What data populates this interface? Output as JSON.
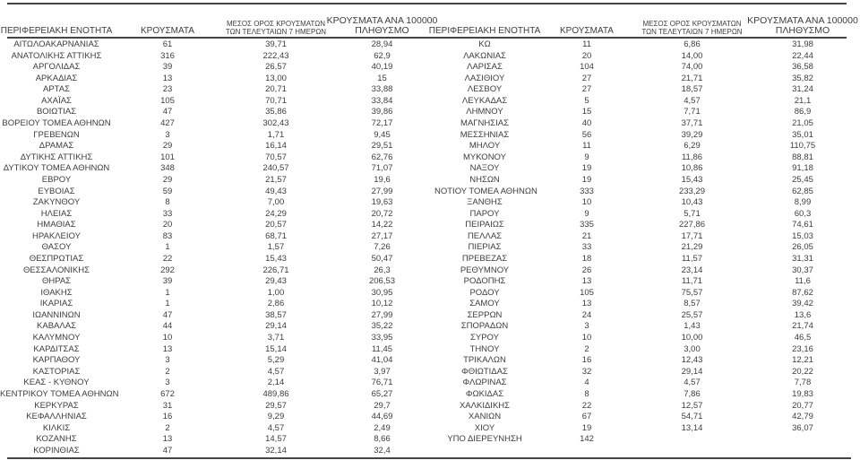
{
  "table": {
    "header": {
      "col1": "ΠΕΡΙΦΕΡΕΙΑΚΗ ΕΝΟΤΗΤΑ",
      "col2": "ΚΡΟΥΣΜΑΤΑ",
      "col3_line1": "ΜΕΣΟΣ ΟΡΟΣ ΚΡΟΥΣΜΑΤΩΝ",
      "col3_line2": "ΤΩΝ ΤΕΛΕΥΤΑΙΩΝ 7 ΗΜΕΡΩΝ",
      "col4_line1": "ΚΡΟΥΣΜΑΤΑ ΑΝΑ 100000",
      "col4_line2": "ΠΛΗΘΥΣΜΟ"
    },
    "text_color": "#3d3d3d",
    "rule_color": "#454545",
    "background_color": "#ffffff",
    "decimal_separator": ","
  },
  "chart_data": {
    "type": "table",
    "columns": [
      "ΠΕΡΙΦΕΡΕΙΑΚΗ ΕΝΟΤΗΤΑ",
      "ΚΡΟΥΣΜΑΤΑ",
      "ΜΕΣΟΣ ΟΡΟΣ ΚΡΟΥΣΜΑΤΩΝ ΤΩΝ ΤΕΛΕΥΤΑΙΩΝ 7 ΗΜΕΡΩΝ",
      "ΚΡΟΥΣΜΑΤΑ ΑΝΑ 100000 ΠΛΗΘΥΣΜΟ"
    ],
    "left_rows": [
      [
        "ΑΙΤΩΛΟΑΚΑΡΝΑΝΙΑΣ",
        "61",
        "39,71",
        "28,94"
      ],
      [
        "ΑΝΑΤΟΛΙΚΗΣ ΑΤΤΙΚΗΣ",
        "316",
        "222,43",
        "62,9"
      ],
      [
        "ΑΡΓΟΛΙΔΑΣ",
        "39",
        "26,57",
        "40,19"
      ],
      [
        "ΑΡΚΑΔΙΑΣ",
        "13",
        "13,00",
        "15"
      ],
      [
        "ΑΡΤΑΣ",
        "23",
        "20,71",
        "33,88"
      ],
      [
        "ΑΧΑΪΑΣ",
        "105",
        "70,71",
        "33,84"
      ],
      [
        "ΒΟΙΩΤΙΑΣ",
        "47",
        "35,86",
        "39,86"
      ],
      [
        "ΒΟΡΕΙΟΥ ΤΟΜΕΑ ΑΘΗΝΩΝ",
        "427",
        "302,43",
        "72,17"
      ],
      [
        "ΓΡΕΒΕΝΩΝ",
        "3",
        "1,71",
        "9,45"
      ],
      [
        "ΔΡΑΜΑΣ",
        "29",
        "16,14",
        "29,51"
      ],
      [
        "ΔΥΤΙΚΗΣ ΑΤΤΙΚΗΣ",
        "101",
        "70,57",
        "62,76"
      ],
      [
        "ΔΥΤΙΚΟΥ ΤΟΜΕΑ ΑΘΗΝΩΝ",
        "348",
        "240,57",
        "71,07"
      ],
      [
        "ΕΒΡΟΥ",
        "29",
        "21,57",
        "19,6"
      ],
      [
        "ΕΥΒΟΙΑΣ",
        "59",
        "49,43",
        "27,99"
      ],
      [
        "ΖΑΚΥΝΘΟΥ",
        "8",
        "7,00",
        "19,63"
      ],
      [
        "ΗΛΕΙΑΣ",
        "33",
        "24,29",
        "20,72"
      ],
      [
        "ΗΜΑΘΙΑΣ",
        "20",
        "20,57",
        "14,22"
      ],
      [
        "ΗΡΑΚΛΕΙΟΥ",
        "83",
        "68,71",
        "27,17"
      ],
      [
        "ΘΑΣΟΥ",
        "1",
        "1,57",
        "7,26"
      ],
      [
        "ΘΕΣΠΡΩΤΙΑΣ",
        "22",
        "15,43",
        "50,47"
      ],
      [
        "ΘΕΣΣΑΛΟΝΙΚΗΣ",
        "292",
        "226,71",
        "26,3"
      ],
      [
        "ΘΗΡΑΣ",
        "39",
        "29,43",
        "206,53"
      ],
      [
        "ΙΘΑΚΗΣ",
        "1",
        "1,00",
        "30,95"
      ],
      [
        "ΙΚΑΡΙΑΣ",
        "1",
        "2,86",
        "10,12"
      ],
      [
        "ΙΩΑΝΝΙΝΩΝ",
        "47",
        "38,57",
        "27,99"
      ],
      [
        "ΚΑΒΑΛΑΣ",
        "44",
        "29,14",
        "35,22"
      ],
      [
        "ΚΑΛΥΜΝΟΥ",
        "10",
        "3,71",
        "33,95"
      ],
      [
        "ΚΑΡΔΙΤΣΑΣ",
        "13",
        "15,14",
        "11,45"
      ],
      [
        "ΚΑΡΠΑΘΟΥ",
        "3",
        "5,29",
        "41,04"
      ],
      [
        "ΚΑΣΤΟΡΙΑΣ",
        "2",
        "4,57",
        "3,97"
      ],
      [
        "ΚΕΑΣ - ΚΥΘΝΟΥ",
        "3",
        "2,14",
        "76,71"
      ],
      [
        "ΚΕΝΤΡΙΚΟΥ ΤΟΜΕΑ ΑΘΗΝΩΝ",
        "672",
        "489,86",
        "65,27"
      ],
      [
        "ΚΕΡΚΥΡΑΣ",
        "31",
        "29,57",
        "29,7"
      ],
      [
        "ΚΕΦΑΛΛΗΝΙΑΣ",
        "16",
        "9,29",
        "44,69"
      ],
      [
        "ΚΙΛΚΙΣ",
        "2",
        "4,57",
        "2,49"
      ],
      [
        "ΚΟΖΑΝΗΣ",
        "13",
        "14,57",
        "8,66"
      ],
      [
        "ΚΟΡΙΝΘΙΑΣ",
        "47",
        "32,14",
        "32,4"
      ]
    ],
    "right_rows": [
      [
        "ΚΩ",
        "11",
        "6,86",
        "31,98"
      ],
      [
        "ΛΑΚΩΝΙΑΣ",
        "20",
        "14,00",
        "22,44"
      ],
      [
        "ΛΑΡΙΣΑΣ",
        "104",
        "74,00",
        "36,58"
      ],
      [
        "ΛΑΣΙΘΙΟΥ",
        "27",
        "21,71",
        "35,82"
      ],
      [
        "ΛΕΣΒΟΥ",
        "27",
        "18,57",
        "31,24"
      ],
      [
        "ΛΕΥΚΑΔΑΣ",
        "5",
        "4,57",
        "21,1"
      ],
      [
        "ΛΗΜΝΟΥ",
        "15",
        "7,71",
        "86,9"
      ],
      [
        "ΜΑΓΝΗΣΙΑΣ",
        "40",
        "37,71",
        "21,05"
      ],
      [
        "ΜΕΣΣΗΝΙΑΣ",
        "56",
        "39,29",
        "35,01"
      ],
      [
        "ΜΗΛΟΥ",
        "11",
        "6,29",
        "110,75"
      ],
      [
        "ΜΥΚΟΝΟΥ",
        "9",
        "11,86",
        "88,81"
      ],
      [
        "ΝΑΞΟΥ",
        "19",
        "10,86",
        "91,18"
      ],
      [
        "ΝΗΣΩΝ",
        "19",
        "15,43",
        "25,45"
      ],
      [
        "ΝΟΤΙΟΥ ΤΟΜΕΑ ΑΘΗΝΩΝ",
        "333",
        "233,29",
        "62,85"
      ],
      [
        "ΞΑΝΘΗΣ",
        "10",
        "10,43",
        "8,99"
      ],
      [
        "ΠΑΡΟΥ",
        "9",
        "5,71",
        "60,3"
      ],
      [
        "ΠΕΙΡΑΙΩΣ",
        "335",
        "227,86",
        "74,61"
      ],
      [
        "ΠΕΛΛΑΣ",
        "21",
        "17,71",
        "15,03"
      ],
      [
        "ΠΙΕΡΙΑΣ",
        "33",
        "21,29",
        "26,05"
      ],
      [
        "ΠΡΕΒΕΖΑΣ",
        "18",
        "11,57",
        "31,31"
      ],
      [
        "ΡΕΘΥΜΝΟΥ",
        "26",
        "23,14",
        "30,37"
      ],
      [
        "ΡΟΔΟΠΗΣ",
        "13",
        "11,71",
        "11,6"
      ],
      [
        "ΡΟΔΟΥ",
        "105",
        "75,57",
        "87,62"
      ],
      [
        "ΣΑΜΟΥ",
        "13",
        "8,57",
        "39,42"
      ],
      [
        "ΣΕΡΡΩΝ",
        "24",
        "25,57",
        "13,6"
      ],
      [
        "ΣΠΟΡΑΔΩΝ",
        "3",
        "1,43",
        "21,74"
      ],
      [
        "ΣΥΡΟΥ",
        "10",
        "10,00",
        "46,5"
      ],
      [
        "ΤΗΝΟΥ",
        "2",
        "3,00",
        "23,16"
      ],
      [
        "ΤΡΙΚΑΛΩΝ",
        "16",
        "12,43",
        "12,21"
      ],
      [
        "ΦΘΙΩΤΙΔΑΣ",
        "32",
        "29,14",
        "20,22"
      ],
      [
        "ΦΛΩΡΙΝΑΣ",
        "4",
        "4,57",
        "7,78"
      ],
      [
        "ΦΩΚΙΔΑΣ",
        "8",
        "7,86",
        "19,83"
      ],
      [
        "ΧΑΛΚΙΔΙΚΗΣ",
        "22",
        "12,57",
        "20,77"
      ],
      [
        "ΧΑΝΙΩΝ",
        "67",
        "54,71",
        "42,79"
      ],
      [
        "ΧΙΟΥ",
        "19",
        "13,14",
        "36,07"
      ],
      [
        "ΥΠΟ ΔΙΕΡΕΥΝΗΣΗ",
        "142",
        "",
        ""
      ]
    ]
  }
}
